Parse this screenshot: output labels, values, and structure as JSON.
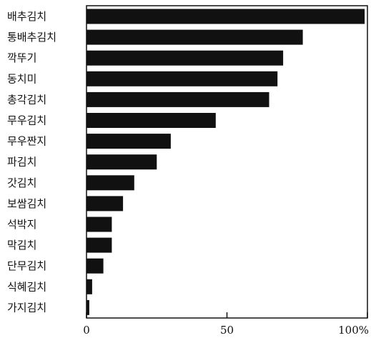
{
  "chart_data": {
    "type": "bar",
    "orientation": "horizontal",
    "categories": [
      "배추김치",
      "통배추김치",
      "깍뚜기",
      "동치미",
      "총각김치",
      "무우김치",
      "무우짠지",
      "파김치",
      "갓김치",
      "보쌈김치",
      "석박지",
      "막김치",
      "단무김치",
      "식혜김치",
      "가지김치"
    ],
    "values": [
      99,
      77,
      70,
      68,
      65,
      46,
      30,
      25,
      17,
      13,
      9,
      9,
      6,
      2,
      1
    ],
    "xlim": [
      0,
      100
    ],
    "xticks": [
      0,
      50,
      100
    ],
    "xtick_labels": [
      "0",
      "50",
      "100%"
    ],
    "title": "",
    "xlabel": "",
    "ylabel": "",
    "grid": false,
    "bar_color": "#111111"
  }
}
